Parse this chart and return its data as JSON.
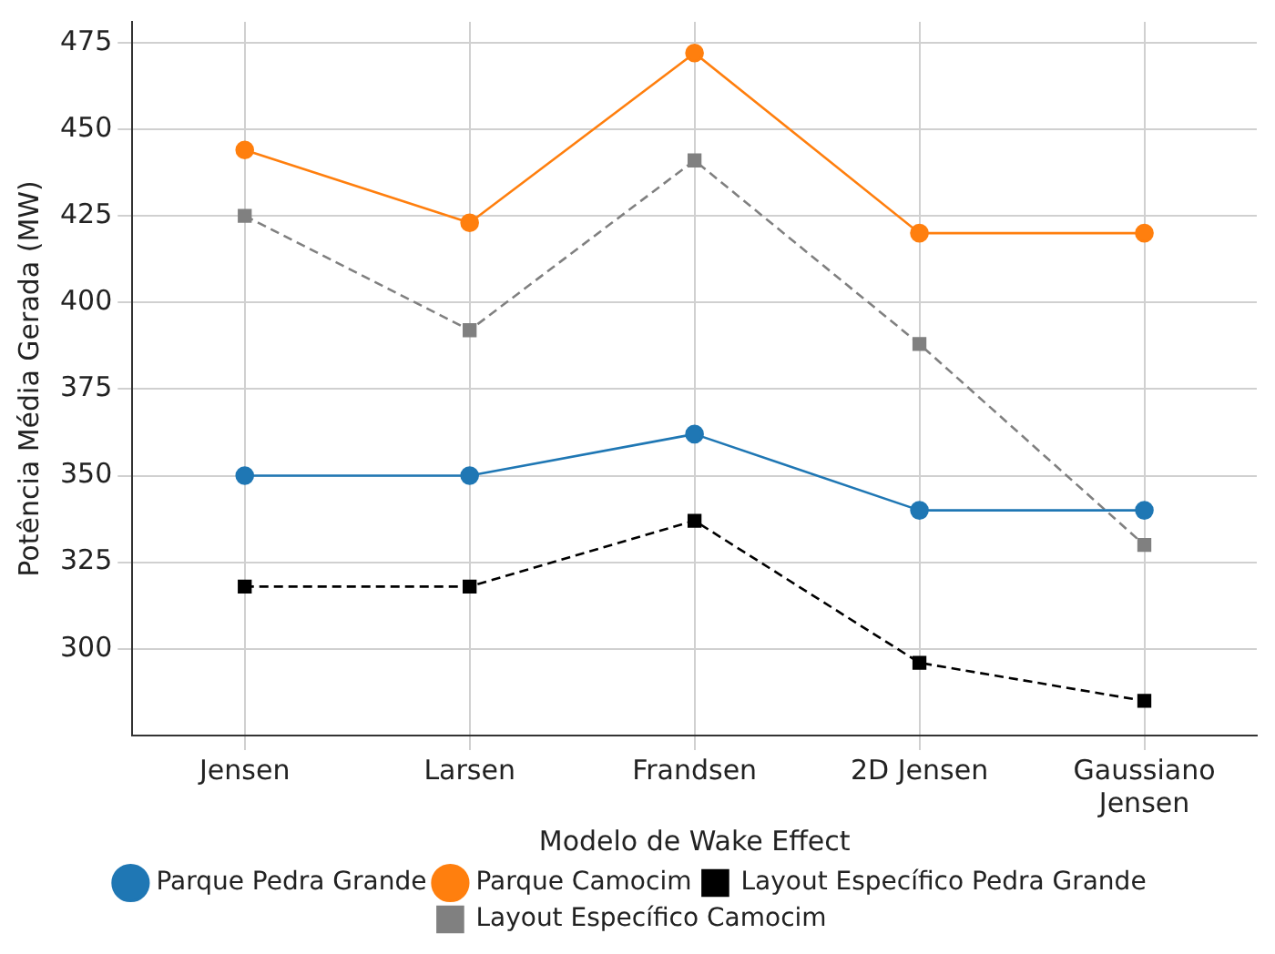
{
  "chart_data": {
    "type": "line",
    "xlabel": "Modelo de Wake Effect",
    "ylabel": "Potência Média Gerada (MW)",
    "categories": [
      "Jensen",
      "Larsen",
      "Frandsen",
      "2D Jensen",
      "Gaussiano\nJensen"
    ],
    "ylim": [
      275,
      481
    ],
    "yticks": [
      300,
      325,
      350,
      375,
      400,
      425,
      450,
      475
    ],
    "grid": true,
    "legend": "bottom",
    "series": [
      {
        "name": "Parque Pedra Grande",
        "color": "#1f77b4",
        "values": [
          350,
          350,
          362,
          340,
          340
        ],
        "marker": "circle",
        "line_style": "solid"
      },
      {
        "name": "Parque Camocim",
        "color": "#ff7f0e",
        "values": [
          444,
          423,
          472,
          420,
          420
        ],
        "marker": "circle",
        "line_style": "solid"
      },
      {
        "name": "Layout Específico Pedra Grande",
        "color": "#000000",
        "values": [
          318,
          318,
          337,
          296,
          285
        ],
        "marker": "square",
        "line_style": "dashed"
      },
      {
        "name": "Layout Específico Camocim",
        "color": "#808080",
        "values": [
          425,
          392,
          441,
          388,
          330
        ],
        "marker": "square",
        "line_style": "dashed"
      }
    ]
  }
}
